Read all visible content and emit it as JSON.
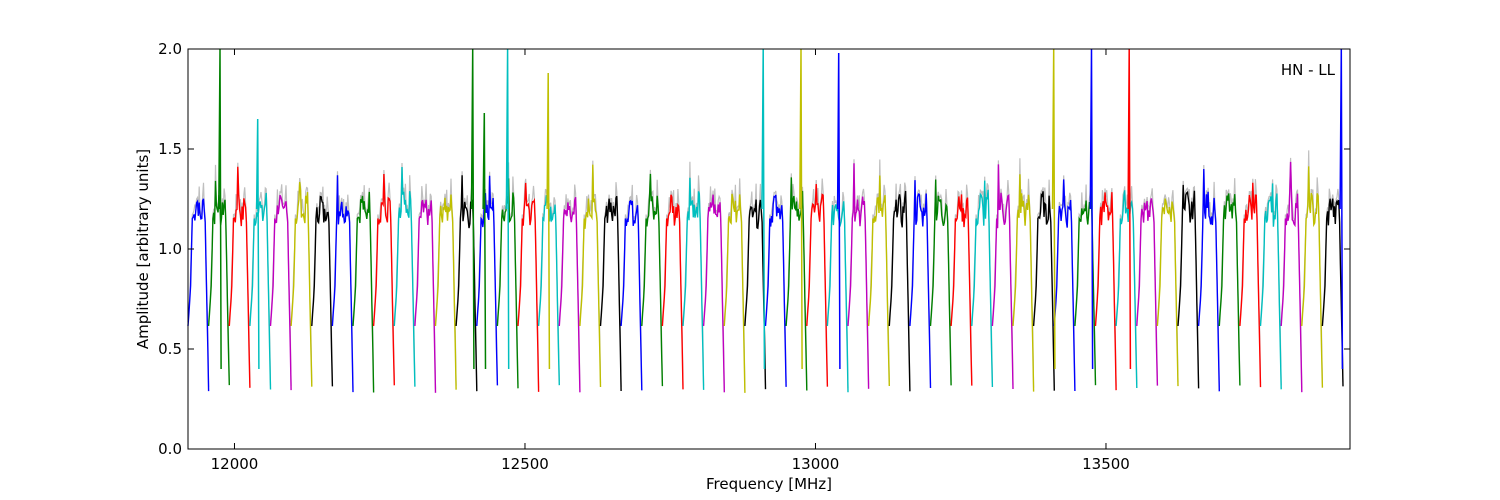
{
  "chart_data": {
    "type": "line",
    "annotation": "HN - LL",
    "xlabel": "Frequency [MHz]",
    "ylabel": "Amplitude [arbitrary units]",
    "xlim": [
      11920,
      13920
    ],
    "ylim": [
      0.0,
      2.0
    ],
    "x_ticks": [
      12000,
      12500,
      13000,
      13500
    ],
    "y_ticks": [
      0.0,
      0.5,
      1.0,
      1.5,
      2.0
    ],
    "y_tick_labels": [
      "0.0",
      "0.5",
      "1.0",
      "1.5",
      "2.0"
    ],
    "grid": false,
    "legend": "none",
    "color_cycle": [
      "#0000ff",
      "#008000",
      "#ff0000",
      "#00bfbf",
      "#bf00bf",
      "#bfbf00",
      "#000000"
    ],
    "background_series_color": "#bfbfbf",
    "series_description": "Repeating bandpass segments approx. 35 MHz wide; each segment rises from about 0.3 to a plateau near 1.2 with narrow spikes.",
    "segment_first_x": 11920,
    "segment_width_mhz": 35.5,
    "segment_count": 56,
    "plateau_level": 1.2,
    "trough_level": 0.3,
    "spikes": [
      {
        "x": 11975,
        "y": 2.0,
        "color": "#008000"
      },
      {
        "x": 12040,
        "y": 1.65,
        "color": "#00bfbf"
      },
      {
        "x": 12410,
        "y": 2.0,
        "color": "#008000"
      },
      {
        "x": 12430,
        "y": 1.68,
        "color": "#008000"
      },
      {
        "x": 12470,
        "y": 2.0,
        "color": "#00bfbf"
      },
      {
        "x": 12540,
        "y": 1.88,
        "color": "#bfbf00"
      },
      {
        "x": 12910,
        "y": 2.0,
        "color": "#00bfbf"
      },
      {
        "x": 12975,
        "y": 2.0,
        "color": "#bfbf00"
      },
      {
        "x": 13040,
        "y": 1.98,
        "color": "#0000ff"
      },
      {
        "x": 13410,
        "y": 2.0,
        "color": "#bfbf00"
      },
      {
        "x": 13475,
        "y": 2.0,
        "color": "#0000ff"
      },
      {
        "x": 13540,
        "y": 2.0,
        "color": "#ff0000"
      },
      {
        "x": 13905,
        "y": 2.0,
        "color": "#0000ff"
      }
    ]
  }
}
